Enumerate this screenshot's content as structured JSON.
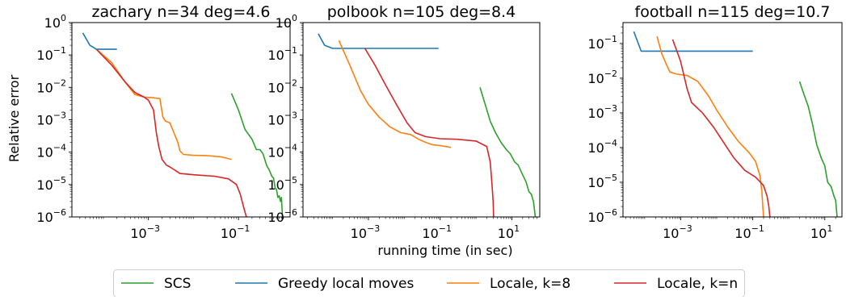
{
  "figure": {
    "ylabel": "Relative error",
    "xlabel": "running time (in sec)"
  },
  "legend": [
    {
      "label": "SCS",
      "color": "#2ca02c"
    },
    {
      "label": "Greedy local moves",
      "color": "#1f77b4"
    },
    {
      "label": "Locale, k=8",
      "color": "#ff7f0e"
    },
    {
      "label": "Locale, k=n",
      "color": "#d62728"
    }
  ],
  "chart_data": [
    {
      "type": "line",
      "title": "zachary n=34 deg=4.6",
      "xscale": "log",
      "yscale": "log",
      "xlim": [
        2e-05,
        1.4
      ],
      "ylim": [
        1e-06,
        1
      ],
      "xticks": [
        {
          "value": 0.001,
          "label": "10",
          "exp": "−3"
        },
        {
          "value": 0.1,
          "label": "10",
          "exp": "−1"
        }
      ],
      "yticks": [
        {
          "value": 1,
          "label": "10",
          "exp": "0"
        },
        {
          "value": 0.1,
          "label": "10",
          "exp": "−1"
        },
        {
          "value": 0.01,
          "label": "10",
          "exp": "−2"
        },
        {
          "value": 0.001,
          "label": "10",
          "exp": "−3"
        },
        {
          "value": 0.0001,
          "label": "10",
          "exp": "−4"
        },
        {
          "value": 1e-05,
          "label": "10",
          "exp": "−5"
        },
        {
          "value": 1e-06,
          "label": "10",
          "exp": "−6"
        }
      ],
      "series": [
        {
          "name": "Greedy local moves",
          "color": "#1f77b4",
          "x": [
            3.5e-05,
            5e-05,
            7e-05,
            0.0001,
            0.0002
          ],
          "y": [
            0.48,
            0.2,
            0.15,
            0.15,
            0.15
          ]
        },
        {
          "name": "Locale, k=8",
          "color": "#ff7f0e",
          "x": [
            7e-05,
            0.00015,
            0.0003,
            0.0005,
            0.0008,
            0.0012,
            0.0018,
            0.0021,
            0.0024,
            0.003,
            0.0045,
            0.005,
            0.006,
            0.01,
            0.02,
            0.04,
            0.07
          ],
          "y": [
            0.15,
            0.06,
            0.015,
            0.006,
            0.005,
            0.0048,
            0.0045,
            0.0012,
            0.0009,
            0.0008,
            0.0002,
            0.00011,
            8.5e-05,
            8e-05,
            7.8e-05,
            7.2e-05,
            6e-05
          ]
        },
        {
          "name": "Locale, k=n",
          "color": "#d62728",
          "x": [
            7e-05,
            0.00015,
            0.0003,
            0.0005,
            0.0008,
            0.001,
            0.0013,
            0.0015,
            0.0017,
            0.002,
            0.0025,
            0.003,
            0.005,
            0.01,
            0.03,
            0.06,
            0.09,
            0.11,
            0.13,
            0.15
          ],
          "y": [
            0.15,
            0.05,
            0.015,
            0.007,
            0.005,
            0.004,
            0.002,
            0.0004,
            0.00015,
            6e-05,
            4e-05,
            3.5e-05,
            2.2e-05,
            2e-05,
            1.8e-05,
            1.5e-05,
            1e-05,
            5e-06,
            2e-06,
            1e-06
          ]
        },
        {
          "name": "SCS",
          "color": "#2ca02c",
          "x": [
            0.07,
            0.1,
            0.14,
            0.2,
            0.25,
            0.3,
            0.35,
            0.42,
            0.5,
            0.55,
            0.6,
            0.65,
            0.7,
            0.75,
            0.8,
            0.86,
            0.9,
            0.95
          ],
          "y": [
            0.0065,
            0.002,
            0.0005,
            0.00025,
            0.00012,
            0.00012,
            9e-05,
            4e-05,
            2.5e-05,
            1.8e-05,
            1.6e-05,
            8e-06,
            7e-06,
            4e-06,
            4.5e-06,
            3e-06,
            4e-06,
            1e-06
          ]
        }
      ]
    },
    {
      "type": "line",
      "title": "polbook n=105 deg=8.4",
      "xscale": "log",
      "yscale": "log",
      "xlim": [
        1.5e-05,
        60
      ],
      "ylim": [
        1e-06,
        1
      ],
      "xticks": [
        {
          "value": 0.001,
          "label": "10",
          "exp": "−3"
        },
        {
          "value": 0.1,
          "label": "10",
          "exp": "−1"
        },
        {
          "value": 10,
          "label": "10",
          "exp": "1"
        }
      ],
      "yticks": [
        {
          "value": 1,
          "label": "10",
          "exp": "0"
        },
        {
          "value": 0.1,
          "label": "10",
          "exp": "−1"
        },
        {
          "value": 0.01,
          "label": "10",
          "exp": "−2"
        },
        {
          "value": 0.001,
          "label": "10",
          "exp": "−3"
        },
        {
          "value": 0.0001,
          "label": "10",
          "exp": "−4"
        },
        {
          "value": 1e-05,
          "label": "10",
          "exp": "−5"
        },
        {
          "value": 1e-06,
          "label": "10",
          "exp": "−6"
        }
      ],
      "series": [
        {
          "name": "Greedy local moves",
          "color": "#1f77b4",
          "x": [
            4e-05,
            6e-05,
            0.0001,
            0.0002,
            0.001,
            0.09
          ],
          "y": [
            0.45,
            0.2,
            0.16,
            0.16,
            0.16,
            0.16
          ]
        },
        {
          "name": "Locale, k=8",
          "color": "#ff7f0e",
          "x": [
            0.00015,
            0.0003,
            0.0006,
            0.001,
            0.002,
            0.004,
            0.008,
            0.015,
            0.025,
            0.04,
            0.06,
            0.1,
            0.2
          ],
          "y": [
            0.28,
            0.05,
            0.008,
            0.003,
            0.0012,
            0.0006,
            0.0004,
            0.00035,
            0.00025,
            0.0002,
            0.00017,
            0.00016,
            0.00014
          ]
        },
        {
          "name": "Locale, k=n",
          "color": "#d62728",
          "x": [
            0.0008,
            0.0015,
            0.003,
            0.006,
            0.012,
            0.02,
            0.04,
            0.1,
            0.3,
            1,
            2,
            2.5,
            2.8,
            3.0,
            3.1
          ],
          "y": [
            0.16,
            0.05,
            0.012,
            0.003,
            0.0008,
            0.0004,
            0.0003,
            0.00026,
            0.00025,
            0.00022,
            0.00015,
            5e-05,
            1e-05,
            3e-06,
            1e-06
          ]
        },
        {
          "name": "SCS",
          "color": "#2ca02c",
          "x": [
            1.3,
            1.8,
            2.5,
            3.5,
            5,
            7,
            9,
            12,
            15,
            20,
            25,
            30,
            35,
            40,
            45
          ],
          "y": [
            0.01,
            0.003,
            0.0009,
            0.0004,
            0.0002,
            0.00012,
            9e-05,
            5e-05,
            4e-05,
            2e-05,
            1.2e-05,
            6e-06,
            5e-06,
            3e-06,
            1e-06
          ]
        }
      ]
    },
    {
      "type": "line",
      "title": "football n=115 deg=10.7",
      "xscale": "log",
      "yscale": "log",
      "xlim": [
        2.5e-05,
        30
      ],
      "ylim": [
        1e-06,
        0.4
      ],
      "xticks": [
        {
          "value": 0.001,
          "label": "10",
          "exp": "−3"
        },
        {
          "value": 0.1,
          "label": "10",
          "exp": "−1"
        },
        {
          "value": 10,
          "label": "10",
          "exp": "1"
        }
      ],
      "yticks": [
        {
          "value": 0.1,
          "label": "10",
          "exp": "−1"
        },
        {
          "value": 0.01,
          "label": "10",
          "exp": "−2"
        },
        {
          "value": 0.001,
          "label": "10",
          "exp": "−3"
        },
        {
          "value": 0.0001,
          "label": "10",
          "exp": "−4"
        },
        {
          "value": 1e-05,
          "label": "10",
          "exp": "−5"
        },
        {
          "value": 1e-06,
          "label": "10",
          "exp": "−6"
        }
      ],
      "series": [
        {
          "name": "Greedy local moves",
          "color": "#1f77b4",
          "x": [
            5e-05,
            8e-05,
            0.0001,
            0.001,
            0.01,
            0.1
          ],
          "y": [
            0.22,
            0.06,
            0.06,
            0.06,
            0.06,
            0.06
          ]
        },
        {
          "name": "Locale, k=8",
          "color": "#ff7f0e",
          "x": [
            0.00022,
            0.0003,
            0.0004,
            0.0005,
            0.0008,
            0.0015,
            0.003,
            0.006,
            0.01,
            0.02,
            0.04,
            0.08,
            0.12,
            0.16,
            0.18,
            0.19,
            0.2
          ],
          "y": [
            0.16,
            0.05,
            0.025,
            0.015,
            0.013,
            0.012,
            0.008,
            0.003,
            0.0012,
            0.0004,
            0.00015,
            7e-05,
            4e-05,
            1.5e-05,
            5e-06,
            2e-06,
            1e-06
          ]
        },
        {
          "name": "Locale, k=n",
          "color": "#d62728",
          "x": [
            0.0006,
            0.001,
            0.0015,
            0.002,
            0.004,
            0.008,
            0.015,
            0.03,
            0.06,
            0.12,
            0.2,
            0.25,
            0.28,
            0.3
          ],
          "y": [
            0.13,
            0.03,
            0.005,
            0.002,
            0.001,
            0.0004,
            0.00015,
            5e-05,
            2.2e-05,
            1.4e-05,
            8e-06,
            4e-06,
            2e-06,
            1e-06
          ]
        },
        {
          "name": "SCS",
          "color": "#2ca02c",
          "x": [
            2,
            2.5,
            3.5,
            4.5,
            6,
            8,
            10,
            12,
            15,
            18,
            20,
            22
          ],
          "y": [
            0.008,
            0.004,
            0.0015,
            0.0005,
            0.00012,
            5e-05,
            3e-05,
            1e-05,
            7.5e-06,
            4e-06,
            3e-06,
            1e-06
          ]
        }
      ]
    }
  ]
}
